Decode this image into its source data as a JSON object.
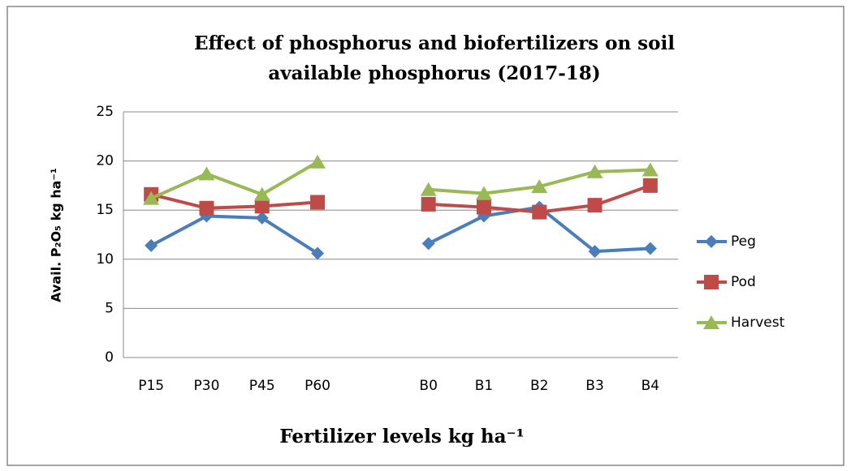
{
  "chart_data": {
    "type": "line",
    "title": [
      "Effect of phosphorus and biofertilizers on soil",
      "available phosphorus (2017-18)"
    ],
    "x_label": "Fertilizer levels kg ha⁻¹",
    "y_label": "Avail. P₂O₅ kg ha⁻¹",
    "categories": [
      "P15",
      "P30",
      "P45",
      "P60",
      null,
      "B0",
      "B1",
      "B2",
      "B3",
      "B4"
    ],
    "series": [
      {
        "name": "Peg",
        "color": "#4a7ebb",
        "marker": "diamond",
        "values": [
          11.4,
          14.4,
          14.2,
          10.6,
          null,
          11.6,
          14.4,
          15.3,
          10.8,
          11.1
        ]
      },
      {
        "name": "Pod",
        "color": "#be4b48",
        "marker": "square",
        "values": [
          16.6,
          15.2,
          15.4,
          15.8,
          null,
          15.6,
          15.3,
          14.8,
          15.5,
          17.5
        ]
      },
      {
        "name": "Harvest",
        "color": "#98b954",
        "marker": "triangle",
        "values": [
          16.2,
          18.7,
          16.6,
          19.9,
          null,
          17.1,
          16.7,
          17.4,
          18.9,
          19.1
        ]
      }
    ],
    "ylim": [
      0,
      25
    ],
    "yticks": [
      0,
      5,
      10,
      15,
      20,
      25
    ],
    "grid": true,
    "legend": "right"
  }
}
